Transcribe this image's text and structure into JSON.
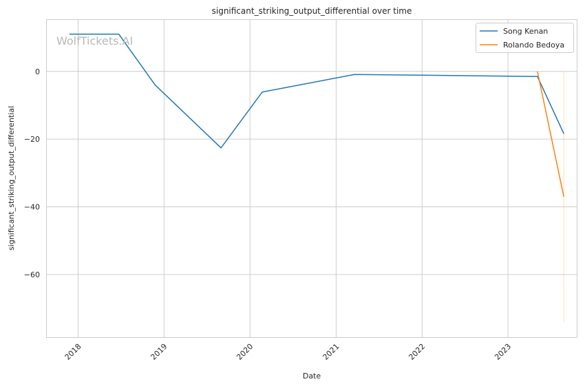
{
  "chart_data": {
    "type": "line",
    "title": "significant_striking_output_differential over time",
    "xlabel": "Date",
    "ylabel": "significant_striking_output_differential",
    "watermark": "WolfTickets.AI",
    "x_ticks": [
      "2018",
      "2019",
      "2020",
      "2021",
      "2022",
      "2023"
    ],
    "y_ticks": [
      0,
      -20,
      -40,
      -60
    ],
    "xlim": [
      "2017-08-21",
      "2023-10-20"
    ],
    "ylim": [
      -78.5,
      15.2
    ],
    "grid": true,
    "legend_position": "top-right",
    "series": [
      {
        "name": "Song Kenan",
        "color": "#1f77b4",
        "points": [
          {
            "x": "2017-11-25",
            "y": 11.0
          },
          {
            "x": "2018-06-23",
            "y": 11.0
          },
          {
            "x": "2018-11-24",
            "y": -4.0
          },
          {
            "x": "2019-08-31",
            "y": -22.6
          },
          {
            "x": "2020-02-22",
            "y": -6.1
          },
          {
            "x": "2021-03-20",
            "y": -0.9
          },
          {
            "x": "2023-05-06",
            "y": -1.5
          },
          {
            "x": "2023-08-26",
            "y": -18.4
          }
        ]
      },
      {
        "name": "Rolando Bedoya",
        "color": "#ff7f0e",
        "points": [
          {
            "x": "2023-05-06",
            "y": 0.0
          },
          {
            "x": "2023-08-26",
            "y": -37.0
          }
        ],
        "band": {
          "x": "2023-08-26",
          "y_min": -74.0,
          "y_max": 0.0
        }
      }
    ]
  }
}
